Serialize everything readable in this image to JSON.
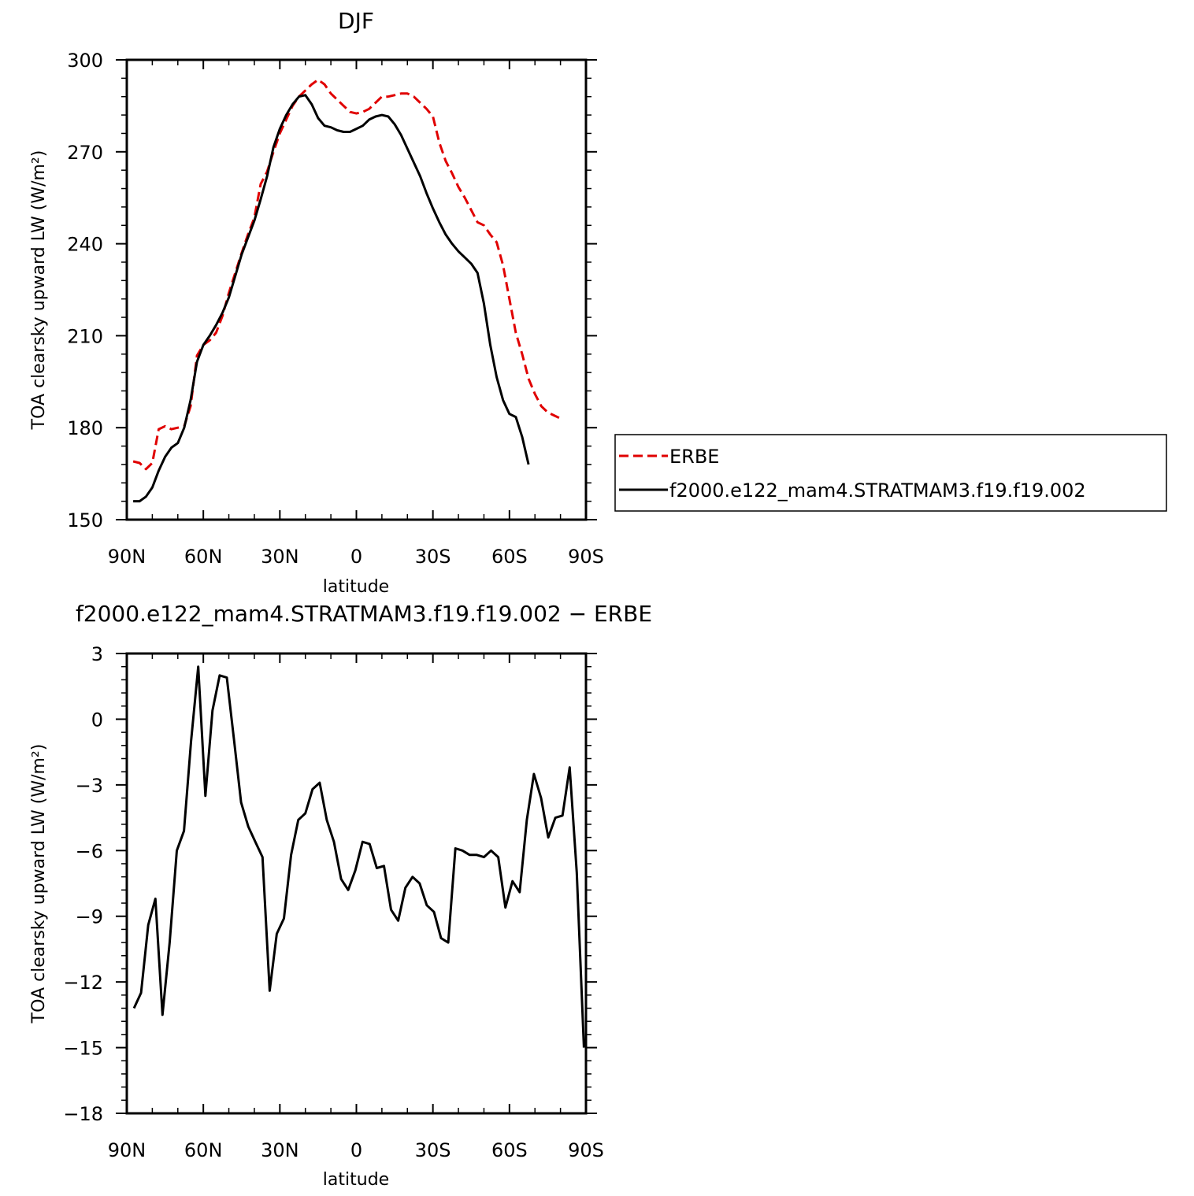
{
  "chart_data": [
    {
      "type": "line",
      "title": "DJF",
      "xlabel": "latitude",
      "ylabel": "TOA clearsky upward LW (W/m²)",
      "xlim": [
        -90,
        90
      ],
      "ylim": [
        150,
        300
      ],
      "xticks": [
        {
          "v": -90,
          "l": "90N"
        },
        {
          "v": -60,
          "l": "60N"
        },
        {
          "v": -30,
          "l": "30N"
        },
        {
          "v": 0,
          "l": "0"
        },
        {
          "v": 30,
          "l": "30S"
        },
        {
          "v": 60,
          "l": "60S"
        },
        {
          "v": 90,
          "l": "90S"
        }
      ],
      "yticks": [
        150,
        180,
        210,
        240,
        270,
        300
      ],
      "legend_position": "right",
      "series": [
        {
          "name": "ERBE",
          "color": "#e00000",
          "style": "dashed",
          "points": [
            [
              -87.5,
              169
            ],
            [
              -85,
              168.5
            ],
            [
              -82.5,
              166.5
            ],
            [
              -80,
              168.5
            ],
            [
              -77.5,
              179.5
            ],
            [
              -75,
              180.5
            ],
            [
              -72.5,
              179.5
            ],
            [
              -70,
              180
            ],
            [
              -67.5,
              180.5
            ],
            [
              -65,
              187
            ],
            [
              -62.5,
              203.5
            ],
            [
              -60,
              207
            ],
            [
              -57.5,
              208.5
            ],
            [
              -55,
              211
            ],
            [
              -52.5,
              216.5
            ],
            [
              -50,
              224
            ],
            [
              -47.5,
              230.5
            ],
            [
              -45,
              237
            ],
            [
              -42.5,
              243
            ],
            [
              -40,
              248.5
            ],
            [
              -37.5,
              259.5
            ],
            [
              -35,
              263.5
            ],
            [
              -32.5,
              270
            ],
            [
              -30,
              276
            ],
            [
              -27.5,
              280.5
            ],
            [
              -25,
              285
            ],
            [
              -22.5,
              288
            ],
            [
              -20,
              290
            ],
            [
              -17.5,
              292
            ],
            [
              -15,
              293.5
            ],
            [
              -12.5,
              292
            ],
            [
              -10,
              289
            ],
            [
              -7.5,
              287
            ],
            [
              -5,
              285
            ],
            [
              -2.5,
              283
            ],
            [
              0,
              282.5
            ],
            [
              2.5,
              283
            ],
            [
              5,
              284
            ],
            [
              7.5,
              286
            ],
            [
              10,
              288
            ],
            [
              12.5,
              288
            ],
            [
              15,
              288.5
            ],
            [
              17.5,
              289
            ],
            [
              20,
              289
            ],
            [
              22.5,
              288
            ],
            [
              25,
              286
            ],
            [
              27.5,
              284
            ],
            [
              30,
              281.5
            ],
            [
              32.5,
              273
            ],
            [
              35,
              267
            ],
            [
              37.5,
              263
            ],
            [
              40,
              258.5
            ],
            [
              42.5,
              255
            ],
            [
              45,
              251
            ],
            [
              47.5,
              247
            ],
            [
              50,
              246
            ],
            [
              52.5,
              243
            ],
            [
              55,
              240.5
            ],
            [
              57.5,
              233
            ],
            [
              60,
              222
            ],
            [
              62.5,
              211
            ],
            [
              65,
              204
            ],
            [
              67.5,
              196
            ],
            [
              70,
              191
            ],
            [
              72.5,
              187
            ],
            [
              75,
              185
            ],
            [
              77.5,
              184
            ],
            [
              80,
              183
            ]
          ]
        },
        {
          "name": "f2000.e122_mam4.STRATMAM3.f19.f19.002",
          "color": "#000000",
          "style": "solid",
          "points": [
            [
              -87.5,
              156
            ],
            [
              -85,
              156
            ],
            [
              -82.5,
              157.5
            ],
            [
              -80,
              160.5
            ],
            [
              -77.5,
              166
            ],
            [
              -75,
              170.5
            ],
            [
              -72.5,
              173.5
            ],
            [
              -70,
              175
            ],
            [
              -67.5,
              180
            ],
            [
              -65,
              189
            ],
            [
              -62.5,
              201.5
            ],
            [
              -60,
              207
            ],
            [
              -57.5,
              210
            ],
            [
              -55,
              213.5
            ],
            [
              -52.5,
              217.5
            ],
            [
              -50,
              222.5
            ],
            [
              -47.5,
              229.5
            ],
            [
              -45,
              236.5
            ],
            [
              -42.5,
              242
            ],
            [
              -40,
              247.5
            ],
            [
              -37.5,
              254.5
            ],
            [
              -35,
              262
            ],
            [
              -32.5,
              271.5
            ],
            [
              -30,
              277.5
            ],
            [
              -27.5,
              282
            ],
            [
              -25,
              285.5
            ],
            [
              -22.5,
              288
            ],
            [
              -20,
              288.5
            ],
            [
              -17.5,
              285.5
            ],
            [
              -15,
              281
            ],
            [
              -12.5,
              278.5
            ],
            [
              -10,
              278
            ],
            [
              -7.5,
              277
            ],
            [
              -5,
              276.5
            ],
            [
              -2.5,
              276.5
            ],
            [
              0,
              277.5
            ],
            [
              2.5,
              278.5
            ],
            [
              5,
              280.5
            ],
            [
              7.5,
              281.5
            ],
            [
              10,
              282
            ],
            [
              12.5,
              281.5
            ],
            [
              15,
              279
            ],
            [
              17.5,
              275.5
            ],
            [
              20,
              271
            ],
            [
              22.5,
              266.5
            ],
            [
              25,
              262
            ],
            [
              27.5,
              256.5
            ],
            [
              30,
              251.5
            ],
            [
              32.5,
              247
            ],
            [
              35,
              243
            ],
            [
              37.5,
              240
            ],
            [
              40,
              237.5
            ],
            [
              42.5,
              235.5
            ],
            [
              45,
              233.5
            ],
            [
              47.5,
              230.5
            ],
            [
              50,
              220.5
            ],
            [
              52.5,
              207
            ],
            [
              55,
              196.5
            ],
            [
              57.5,
              189
            ],
            [
              60,
              184.5
            ],
            [
              62.5,
              183.5
            ],
            [
              65,
              177
            ],
            [
              67.5,
              168
            ]
          ]
        }
      ]
    },
    {
      "type": "line",
      "title": "f2000.e122_mam4.STRATMAM3.f19.f19.002 − ERBE",
      "xlabel": "latitude",
      "ylabel": "TOA clearsky upward LW (W/m²)",
      "xlim": [
        -90,
        90
      ],
      "ylim": [
        -18,
        3
      ],
      "xticks": [
        {
          "v": -90,
          "l": "90N"
        },
        {
          "v": -60,
          "l": "60N"
        },
        {
          "v": -30,
          "l": "30N"
        },
        {
          "v": 0,
          "l": "0"
        },
        {
          "v": 30,
          "l": "30S"
        },
        {
          "v": 60,
          "l": "60S"
        },
        {
          "v": 90,
          "l": "90S"
        }
      ],
      "yticks": [
        -18,
        -15,
        -12,
        -9,
        -6,
        -3,
        0,
        3
      ],
      "series": [
        {
          "color": "#000000",
          "style": "solid",
          "points": [
            [
              -87.2,
              -13.2
            ],
            [
              -84.4,
              -12.5
            ],
            [
              -81.6,
              -9.4
            ],
            [
              -78.8,
              -8.2
            ],
            [
              -76,
              -13.5
            ],
            [
              -73.2,
              -10.2
            ],
            [
              -70.4,
              -6
            ],
            [
              -67.6,
              -5.1
            ],
            [
              -64.8,
              -1
            ],
            [
              -62,
              2.4
            ],
            [
              -59.2,
              -3.5
            ],
            [
              -56.4,
              0.4
            ],
            [
              -53.6,
              2
            ],
            [
              -50.8,
              1.9
            ],
            [
              -48,
              -0.9
            ],
            [
              -45.2,
              -3.8
            ],
            [
              -42.4,
              -4.9
            ],
            [
              -39.6,
              -5.6
            ],
            [
              -36.8,
              -6.3
            ],
            [
              -34,
              -12.4
            ],
            [
              -31.2,
              -9.8
            ],
            [
              -28.4,
              -9.1
            ],
            [
              -25.6,
              -6.2
            ],
            [
              -22.8,
              -4.6
            ],
            [
              -20,
              -4.3
            ],
            [
              -17.2,
              -3.2
            ],
            [
              -14.4,
              -2.9
            ],
            [
              -11.6,
              -4.6
            ],
            [
              -8.8,
              -5.6
            ],
            [
              -6,
              -7.3
            ],
            [
              -3.2,
              -7.8
            ],
            [
              -0.4,
              -6.9
            ],
            [
              2.4,
              -5.6
            ],
            [
              5.2,
              -5.7
            ],
            [
              8,
              -6.8
            ],
            [
              10.8,
              -6.7
            ],
            [
              13.6,
              -8.7
            ],
            [
              16.4,
              -9.2
            ],
            [
              19.2,
              -7.7
            ],
            [
              22,
              -7.2
            ],
            [
              24.8,
              -7.5
            ],
            [
              27.6,
              -8.5
            ],
            [
              30.4,
              -8.8
            ],
            [
              33.2,
              -10
            ],
            [
              36,
              -10.2
            ],
            [
              38.8,
              -5.9
            ],
            [
              41.6,
              -6
            ],
            [
              44.4,
              -6.2
            ],
            [
              47.2,
              -6.2
            ],
            [
              50,
              -6.3
            ],
            [
              52.8,
              -6
            ],
            [
              55.6,
              -6.3
            ],
            [
              58.4,
              -8.6
            ],
            [
              61.2,
              -7.4
            ],
            [
              64,
              -7.9
            ],
            [
              66.8,
              -4.6
            ],
            [
              69.6,
              -2.5
            ],
            [
              72.4,
              -3.6
            ],
            [
              75.2,
              -5.4
            ],
            [
              78,
              -4.5
            ],
            [
              80.8,
              -4.4
            ],
            [
              83.6,
              -2.2
            ],
            [
              86.4,
              -7
            ],
            [
              89.2,
              -15
            ]
          ]
        }
      ]
    }
  ]
}
